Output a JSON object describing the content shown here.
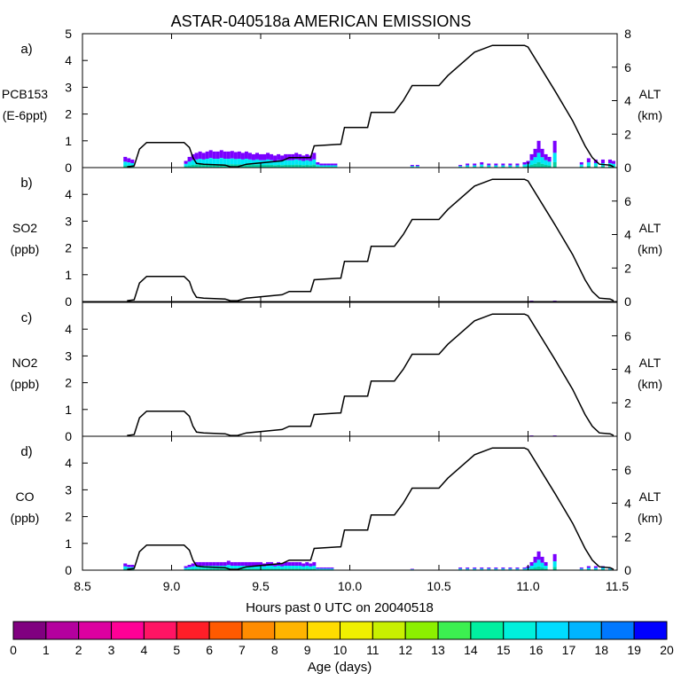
{
  "title": "ASTAR-040518a AMERICAN EMISSIONS",
  "xlabel": "Hours past 0 UTC on 20040518",
  "colorbar": {
    "label": "Age (days)",
    "ticks": [
      "0",
      "1",
      "2",
      "3",
      "4",
      "5",
      "6",
      "7",
      "8",
      "9",
      "10",
      "11",
      "12",
      "13",
      "14",
      "15",
      "16",
      "17",
      "18",
      "19",
      "20"
    ],
    "colors": [
      "#800080",
      "#b4009e",
      "#dc00a0",
      "#ff0096",
      "#ff1464",
      "#ff1e28",
      "#ff5a00",
      "#ff8c00",
      "#ffb400",
      "#ffdc00",
      "#f0f000",
      "#c8f000",
      "#8cf000",
      "#3cf050",
      "#00f0a0",
      "#00f0dc",
      "#00dcff",
      "#00b4ff",
      "#0078ff",
      "#0000ff",
      "#6400ff"
    ]
  },
  "chart_data": [
    {
      "type": "bar",
      "panel": "a)",
      "ylabel_line1": "PCB153",
      "ylabel_line2": "(E-6ppt)",
      "ylim": [
        0,
        5
      ],
      "yticks": [
        "0",
        "1",
        "2",
        "3",
        "4",
        "5"
      ],
      "right_ticks": [
        "0",
        "2",
        "4",
        "6",
        "8"
      ],
      "right_label_line1": "ALT",
      "right_label_line2": "(km)",
      "xlim": [
        8.5,
        11.5
      ],
      "xticks": [
        "8.5",
        "9.0",
        "9.5",
        "10.0",
        "10.5",
        "11.0",
        "11.5"
      ],
      "bars": {
        "x": [
          8.74,
          8.76,
          8.78,
          9.08,
          9.1,
          9.12,
          9.14,
          9.16,
          9.18,
          9.2,
          9.22,
          9.24,
          9.26,
          9.28,
          9.3,
          9.32,
          9.34,
          9.36,
          9.38,
          9.4,
          9.42,
          9.44,
          9.46,
          9.48,
          9.5,
          9.52,
          9.54,
          9.56,
          9.58,
          9.6,
          9.62,
          9.64,
          9.66,
          9.68,
          9.7,
          9.72,
          9.74,
          9.76,
          9.78,
          9.8,
          9.82,
          9.84,
          9.86,
          9.88,
          9.9,
          9.92,
          10.35,
          10.38,
          10.62,
          10.66,
          10.7,
          10.74,
          10.78,
          10.82,
          10.86,
          10.9,
          10.94,
          10.98,
          11.0,
          11.02,
          11.04,
          11.06,
          11.08,
          11.1,
          11.12,
          11.15,
          11.3,
          11.34,
          11.38,
          11.42,
          11.46,
          11.48
        ],
        "values": [
          0.4,
          0.35,
          0.3,
          0.25,
          0.4,
          0.5,
          0.55,
          0.6,
          0.55,
          0.6,
          0.65,
          0.6,
          0.6,
          0.65,
          0.6,
          0.6,
          0.62,
          0.58,
          0.6,
          0.55,
          0.6,
          0.55,
          0.5,
          0.55,
          0.5,
          0.5,
          0.55,
          0.5,
          0.45,
          0.5,
          0.45,
          0.5,
          0.5,
          0.5,
          0.55,
          0.5,
          0.45,
          0.5,
          0.45,
          0.55,
          0.2,
          0.15,
          0.15,
          0.15,
          0.15,
          0.15,
          0.1,
          0.1,
          0.1,
          0.15,
          0.15,
          0.2,
          0.15,
          0.15,
          0.15,
          0.15,
          0.15,
          0.2,
          0.25,
          0.5,
          0.7,
          1.0,
          0.7,
          0.5,
          0.4,
          1.0,
          0.2,
          0.35,
          0.3,
          0.3,
          0.3,
          0.25
        ]
      }
    },
    {
      "type": "bar",
      "panel": "b)",
      "ylabel_line1": "SO2",
      "ylabel_line2": "(ppb)",
      "ylim": [
        0,
        5
      ],
      "yticks": [
        "0",
        "1",
        "2",
        "3",
        "4"
      ],
      "right_ticks": [
        "0",
        "2",
        "4",
        "6"
      ],
      "right_label_line1": "ALT",
      "right_label_line2": "(km)",
      "xlim": [
        8.5,
        11.5
      ],
      "xticks": [
        "8.5",
        "9.0",
        "9.5",
        "10.0",
        "10.5",
        "11.0",
        "11.5"
      ],
      "bars": {
        "x": [
          11.02,
          11.15
        ],
        "values": [
          0.03,
          0.03
        ]
      }
    },
    {
      "type": "bar",
      "panel": "c)",
      "ylabel_line1": "NO2",
      "ylabel_line2": "(ppb)",
      "ylim": [
        0,
        5
      ],
      "yticks": [
        "0",
        "1",
        "2",
        "3",
        "4"
      ],
      "right_ticks": [
        "0",
        "2",
        "4",
        "6"
      ],
      "right_label_line1": "ALT",
      "right_label_line2": "(km)",
      "xlim": [
        8.5,
        11.5
      ],
      "xticks": [
        "8.5",
        "9.0",
        "9.5",
        "10.0",
        "10.5",
        "11.0",
        "11.5"
      ],
      "bars": {
        "x": [
          11.02,
          11.15
        ],
        "values": [
          0.03,
          0.03
        ]
      }
    },
    {
      "type": "bar",
      "panel": "d)",
      "ylabel_line1": "CO",
      "ylabel_line2": "(ppb)",
      "ylim": [
        0,
        5
      ],
      "yticks": [
        "0",
        "1",
        "2",
        "3",
        "4"
      ],
      "right_ticks": [
        "0",
        "2",
        "4",
        "6"
      ],
      "right_label_line1": "ALT",
      "right_label_line2": "(km)",
      "xlim": [
        8.5,
        11.5
      ],
      "xticks": [
        "8.5",
        "9.0",
        "9.5",
        "10.0",
        "10.5",
        "11.0",
        "11.5"
      ],
      "bars": {
        "x": [
          8.74,
          8.76,
          8.78,
          9.08,
          9.1,
          9.12,
          9.14,
          9.16,
          9.18,
          9.2,
          9.22,
          9.24,
          9.26,
          9.28,
          9.3,
          9.32,
          9.34,
          9.36,
          9.38,
          9.4,
          9.42,
          9.44,
          9.46,
          9.48,
          9.5,
          9.52,
          9.54,
          9.56,
          9.58,
          9.6,
          9.62,
          9.64,
          9.66,
          9.68,
          9.7,
          9.72,
          9.74,
          9.76,
          9.78,
          9.8,
          9.82,
          9.84,
          9.86,
          9.88,
          9.9,
          10.35,
          10.62,
          10.66,
          10.7,
          10.74,
          10.78,
          10.82,
          10.86,
          10.9,
          10.94,
          10.98,
          11.0,
          11.02,
          11.04,
          11.06,
          11.08,
          11.1,
          11.15,
          11.3,
          11.34,
          11.38,
          11.42,
          11.46
        ],
        "values": [
          0.25,
          0.2,
          0.2,
          0.15,
          0.2,
          0.25,
          0.3,
          0.3,
          0.3,
          0.3,
          0.3,
          0.3,
          0.3,
          0.3,
          0.3,
          0.35,
          0.3,
          0.3,
          0.3,
          0.3,
          0.3,
          0.3,
          0.3,
          0.3,
          0.3,
          0.25,
          0.3,
          0.3,
          0.25,
          0.3,
          0.25,
          0.3,
          0.3,
          0.3,
          0.3,
          0.3,
          0.25,
          0.3,
          0.25,
          0.3,
          0.1,
          0.1,
          0.1,
          0.1,
          0.1,
          0.05,
          0.1,
          0.1,
          0.1,
          0.1,
          0.1,
          0.1,
          0.1,
          0.1,
          0.1,
          0.1,
          0.15,
          0.3,
          0.5,
          0.7,
          0.5,
          0.3,
          0.6,
          0.1,
          0.15,
          0.15,
          0.15,
          0.1
        ]
      }
    }
  ],
  "altitude": {
    "ylim_km": [
      0,
      8
    ],
    "x": [
      8.75,
      8.79,
      8.82,
      8.86,
      9.07,
      9.1,
      9.12,
      9.14,
      9.18,
      9.3,
      9.33,
      9.37,
      9.42,
      9.62,
      9.66,
      9.78,
      9.8,
      9.95,
      9.97,
      10.1,
      10.12,
      10.25,
      10.3,
      10.35,
      10.5,
      10.55,
      10.7,
      10.8,
      10.95,
      10.98,
      11.0,
      11.15,
      11.25,
      11.32,
      11.36,
      11.4,
      11.46,
      11.48
    ],
    "km": [
      0.05,
      0.1,
      1.1,
      1.5,
      1.5,
      1.2,
      0.6,
      0.25,
      0.2,
      0.15,
      0.05,
      0.05,
      0.2,
      0.4,
      0.6,
      0.6,
      1.3,
      1.4,
      2.4,
      2.4,
      3.3,
      3.3,
      4.0,
      4.9,
      4.9,
      5.5,
      6.9,
      7.3,
      7.3,
      7.3,
      7.2,
      4.6,
      2.8,
      1.3,
      0.6,
      0.2,
      0.15,
      0.05
    ]
  }
}
